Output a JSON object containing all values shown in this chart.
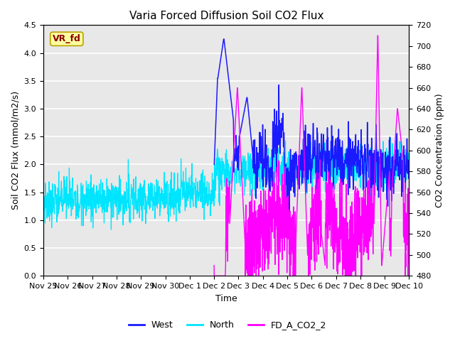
{
  "title": "Varia Forced Diffusion Soil CO2 Flux",
  "xlabel": "Time",
  "ylabel_left": "Soil CO2 Flux (mmol/m2/s)",
  "ylabel_right": "CO2 Concentration (ppm)",
  "ylim_left": [
    0.0,
    4.5
  ],
  "ylim_right": [
    480,
    720
  ],
  "plot_bg_color": "#e8e8e8",
  "west_color": "#1a1aff",
  "north_color": "#00e5ff",
  "co2_color": "#ff00ff",
  "legend_label_west": "West",
  "legend_label_north": "North",
  "legend_label_co2": "FD_A_CO2_2",
  "annotation_text": "VR_fd",
  "annotation_bg": "#ffffa0",
  "annotation_border": "#cc0000",
  "x_start": 0.0,
  "x_end": 15.0,
  "xtick_labels": [
    "Nov 25",
    "Nov 26",
    "Nov 27",
    "Nov 28",
    "Nov 29",
    "Nov 30",
    "Dec 1",
    "Dec 2",
    "Dec 3",
    "Dec 4",
    "Dec 5",
    "Dec 6",
    "Dec 7",
    "Dec 8",
    "Dec 9",
    "Dec 10"
  ],
  "xtick_positions": [
    0,
    1,
    2,
    3,
    4,
    5,
    6,
    7,
    8,
    9,
    10,
    11,
    12,
    13,
    14,
    15
  ]
}
